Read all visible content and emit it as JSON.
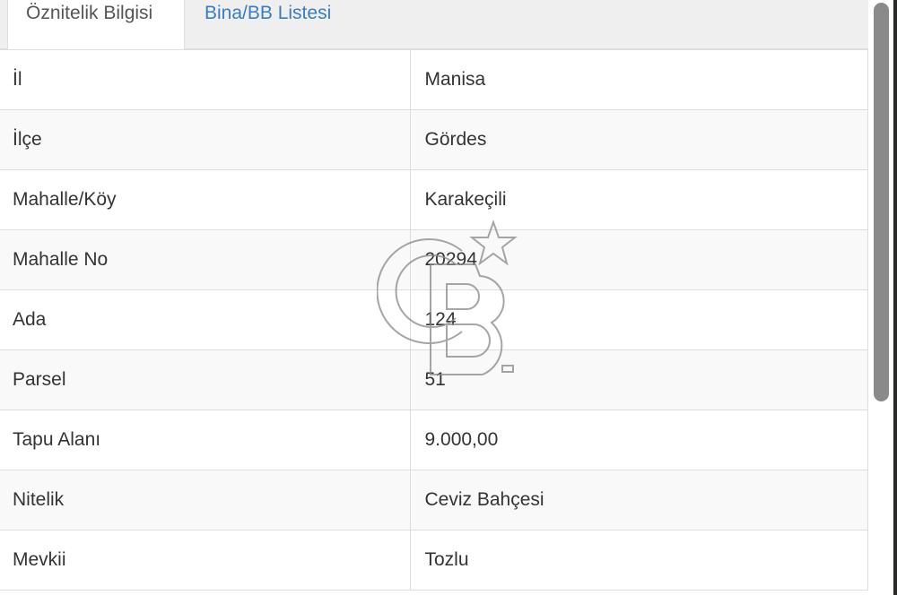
{
  "tabs": [
    {
      "label": "Öznitelik Bilgisi",
      "active": true
    },
    {
      "label": "Bina/BB Listesi",
      "active": false
    }
  ],
  "rows": [
    {
      "key": "İl",
      "value": "Manisa"
    },
    {
      "key": "İlçe",
      "value": "Gördes"
    },
    {
      "key": "Mahalle/Köy",
      "value": "Karakeçili"
    },
    {
      "key": "Mahalle No",
      "value": "20294"
    },
    {
      "key": "Ada",
      "value": "124"
    },
    {
      "key": "Parsel",
      "value": "51"
    },
    {
      "key": "Tapu Alanı",
      "value": "9.000,00"
    },
    {
      "key": "Nitelik",
      "value": "Ceviz Bahçesi"
    },
    {
      "key": "Mevkii",
      "value": "Tozlu"
    }
  ],
  "watermark": {
    "logo": "CB",
    "mark": "SM"
  },
  "colors": {
    "link": "#3a7dbf",
    "scrollbar": "#8a8a8a"
  }
}
